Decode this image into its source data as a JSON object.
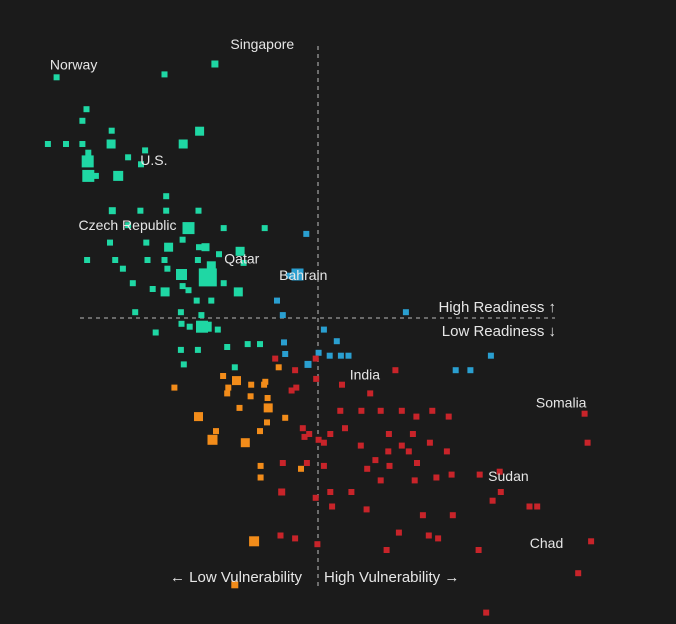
{
  "chart_data": {
    "type": "scatter",
    "title": "",
    "xlim": [
      0,
      1
    ],
    "ylim": [
      0,
      1
    ],
    "grid": false,
    "x_divider": 0.5,
    "y_divider": 0.5,
    "quadrant_labels": {
      "left": "← Low Vulnerability",
      "right": "High Vulnerability →",
      "top": "High Readiness ↑",
      "bottom": "Low Readiness ↓"
    },
    "colors": {
      "background": "#1b1b1b",
      "green": "#1fd7a4",
      "blue": "#2a9fd0",
      "orange": "#f28c1a",
      "red": "#c8242a",
      "divider": "#9a9a9a"
    },
    "labels": [
      {
        "text": "Singapore",
        "x": 0.405,
        "y": 0.97
      },
      {
        "text": "Norway",
        "x": 0.083,
        "y": 0.935
      },
      {
        "text": "U.S.",
        "x": 0.22,
        "y": 0.77
      },
      {
        "text": "Czech Republic",
        "x": 0.175,
        "y": 0.658
      },
      {
        "text": "Qatar",
        "x": 0.37,
        "y": 0.6
      },
      {
        "text": "Bahrain",
        "x": 0.475,
        "y": 0.572
      },
      {
        "text": "India",
        "x": 0.58,
        "y": 0.4
      },
      {
        "text": "Somalia",
        "x": 0.915,
        "y": 0.352
      },
      {
        "text": "Sudan",
        "x": 0.825,
        "y": 0.225
      },
      {
        "text": "Chad",
        "x": 0.89,
        "y": 0.11
      }
    ],
    "series": [
      {
        "color": "green",
        "points": [
          [
            0.054,
            0.915,
            6
          ],
          [
            0.238,
            0.92,
            6
          ],
          [
            0.324,
            0.938,
            7
          ],
          [
            0.105,
            0.86,
            6
          ],
          [
            0.098,
            0.84,
            6
          ],
          [
            0.298,
            0.822,
            9
          ],
          [
            0.148,
            0.823,
            6
          ],
          [
            0.147,
            0.8,
            9
          ],
          [
            0.039,
            0.8,
            6
          ],
          [
            0.07,
            0.8,
            6
          ],
          [
            0.098,
            0.8,
            6
          ],
          [
            0.148,
            0.8,
            6
          ],
          [
            0.176,
            0.777,
            6
          ],
          [
            0.27,
            0.8,
            9
          ],
          [
            0.205,
            0.789,
            6
          ],
          [
            0.108,
            0.785,
            6
          ],
          [
            0.107,
            0.77,
            12
          ],
          [
            0.198,
            0.765,
            6
          ],
          [
            0.121,
            0.745,
            6
          ],
          [
            0.108,
            0.745,
            12
          ],
          [
            0.159,
            0.745,
            10
          ],
          [
            0.241,
            0.71,
            6
          ],
          [
            0.149,
            0.685,
            7
          ],
          [
            0.197,
            0.685,
            6
          ],
          [
            0.241,
            0.685,
            6
          ],
          [
            0.296,
            0.685,
            6
          ],
          [
            0.279,
            0.655,
            12
          ],
          [
            0.176,
            0.66,
            6
          ],
          [
            0.269,
            0.635,
            6
          ],
          [
            0.339,
            0.655,
            6
          ],
          [
            0.409,
            0.655,
            6
          ],
          [
            0.145,
            0.63,
            6
          ],
          [
            0.207,
            0.63,
            6
          ],
          [
            0.245,
            0.622,
            9
          ],
          [
            0.297,
            0.622,
            6
          ],
          [
            0.308,
            0.622,
            8
          ],
          [
            0.331,
            0.61,
            6
          ],
          [
            0.367,
            0.615,
            9
          ],
          [
            0.373,
            0.595,
            6
          ],
          [
            0.106,
            0.6,
            6
          ],
          [
            0.154,
            0.6,
            6
          ],
          [
            0.209,
            0.6,
            6
          ],
          [
            0.238,
            0.6,
            6
          ],
          [
            0.295,
            0.6,
            6
          ],
          [
            0.318,
            0.59,
            9
          ],
          [
            0.312,
            0.57,
            18
          ],
          [
            0.267,
            0.575,
            11
          ],
          [
            0.243,
            0.585,
            6
          ],
          [
            0.269,
            0.555,
            6
          ],
          [
            0.167,
            0.585,
            6
          ],
          [
            0.184,
            0.56,
            6
          ],
          [
            0.279,
            0.548,
            6
          ],
          [
            0.339,
            0.56,
            6
          ],
          [
            0.364,
            0.545,
            9
          ],
          [
            0.218,
            0.55,
            6
          ],
          [
            0.239,
            0.545,
            9
          ],
          [
            0.293,
            0.53,
            6
          ],
          [
            0.318,
            0.53,
            6
          ],
          [
            0.188,
            0.51,
            6
          ],
          [
            0.266,
            0.51,
            6
          ],
          [
            0.301,
            0.505,
            6
          ],
          [
            0.267,
            0.49,
            6
          ],
          [
            0.281,
            0.485,
            6
          ],
          [
            0.302,
            0.485,
            12
          ],
          [
            0.31,
            0.485,
            10
          ],
          [
            0.329,
            0.48,
            6
          ],
          [
            0.223,
            0.475,
            6
          ],
          [
            0.345,
            0.45,
            6
          ],
          [
            0.266,
            0.445,
            6
          ],
          [
            0.295,
            0.445,
            6
          ],
          [
            0.38,
            0.455,
            6
          ],
          [
            0.401,
            0.455,
            6
          ],
          [
            0.271,
            0.42,
            6
          ],
          [
            0.358,
            0.415,
            6
          ]
        ]
      },
      {
        "color": "blue",
        "points": [
          [
            0.48,
            0.645,
            6
          ],
          [
            0.451,
            0.573,
            6
          ],
          [
            0.465,
            0.575,
            12
          ],
          [
            0.43,
            0.53,
            6
          ],
          [
            0.44,
            0.505,
            6
          ],
          [
            0.51,
            0.48,
            6
          ],
          [
            0.532,
            0.46,
            6
          ],
          [
            0.442,
            0.458,
            6
          ],
          [
            0.444,
            0.438,
            6
          ],
          [
            0.501,
            0.44,
            6
          ],
          [
            0.52,
            0.435,
            6
          ],
          [
            0.539,
            0.435,
            6
          ],
          [
            0.552,
            0.435,
            6
          ],
          [
            0.483,
            0.42,
            7
          ],
          [
            0.65,
            0.51,
            6
          ],
          [
            0.795,
            0.435,
            6
          ],
          [
            0.735,
            0.41,
            6
          ],
          [
            0.76,
            0.41,
            6
          ]
        ]
      },
      {
        "color": "orange",
        "points": [
          [
            0.255,
            0.38,
            6
          ],
          [
            0.347,
            0.38,
            6
          ],
          [
            0.361,
            0.392,
            9
          ],
          [
            0.386,
            0.385,
            6
          ],
          [
            0.408,
            0.385,
            6
          ],
          [
            0.338,
            0.4,
            6
          ],
          [
            0.41,
            0.39,
            6
          ],
          [
            0.345,
            0.37,
            6
          ],
          [
            0.385,
            0.365,
            6
          ],
          [
            0.433,
            0.415,
            6
          ],
          [
            0.414,
            0.362,
            6
          ],
          [
            0.415,
            0.345,
            9
          ],
          [
            0.413,
            0.32,
            6
          ],
          [
            0.366,
            0.345,
            6
          ],
          [
            0.296,
            0.33,
            9
          ],
          [
            0.444,
            0.328,
            6
          ],
          [
            0.326,
            0.305,
            6
          ],
          [
            0.401,
            0.305,
            6
          ],
          [
            0.32,
            0.29,
            10
          ],
          [
            0.376,
            0.285,
            9
          ],
          [
            0.402,
            0.225,
            6
          ],
          [
            0.402,
            0.245,
            6
          ],
          [
            0.471,
            0.24,
            6
          ],
          [
            0.391,
            0.115,
            10
          ],
          [
            0.358,
            0.04,
            7
          ]
        ]
      },
      {
        "color": "red",
        "points": [
          [
            0.427,
            0.43,
            6
          ],
          [
            0.461,
            0.41,
            6
          ],
          [
            0.496,
            0.43,
            6
          ],
          [
            0.632,
            0.41,
            6
          ],
          [
            0.497,
            0.395,
            6
          ],
          [
            0.463,
            0.38,
            6
          ],
          [
            0.541,
            0.385,
            6
          ],
          [
            0.589,
            0.37,
            6
          ],
          [
            0.607,
            0.34,
            6
          ],
          [
            0.455,
            0.375,
            6
          ],
          [
            0.485,
            0.3,
            6
          ],
          [
            0.474,
            0.31,
            6
          ],
          [
            0.477,
            0.295,
            6
          ],
          [
            0.501,
            0.29,
            6
          ],
          [
            0.51,
            0.285,
            6
          ],
          [
            0.521,
            0.3,
            6
          ],
          [
            0.538,
            0.34,
            6
          ],
          [
            0.546,
            0.31,
            6
          ],
          [
            0.574,
            0.34,
            6
          ],
          [
            0.643,
            0.34,
            6
          ],
          [
            0.695,
            0.34,
            6
          ],
          [
            0.723,
            0.33,
            6
          ],
          [
            0.668,
            0.33,
            6
          ],
          [
            0.955,
            0.335,
            6
          ],
          [
            0.621,
            0.3,
            6
          ],
          [
            0.662,
            0.3,
            6
          ],
          [
            0.643,
            0.28,
            6
          ],
          [
            0.573,
            0.28,
            6
          ],
          [
            0.62,
            0.27,
            6
          ],
          [
            0.655,
            0.27,
            6
          ],
          [
            0.72,
            0.27,
            6
          ],
          [
            0.691,
            0.285,
            6
          ],
          [
            0.584,
            0.24,
            6
          ],
          [
            0.598,
            0.255,
            6
          ],
          [
            0.622,
            0.245,
            6
          ],
          [
            0.669,
            0.25,
            6
          ],
          [
            0.728,
            0.23,
            6
          ],
          [
            0.776,
            0.23,
            6
          ],
          [
            0.481,
            0.25,
            6
          ],
          [
            0.44,
            0.25,
            6
          ],
          [
            0.51,
            0.245,
            6
          ],
          [
            0.607,
            0.22,
            6
          ],
          [
            0.665,
            0.22,
            6
          ],
          [
            0.702,
            0.225,
            6
          ],
          [
            0.81,
            0.235,
            6
          ],
          [
            0.861,
            0.175,
            6
          ],
          [
            0.812,
            0.2,
            6
          ],
          [
            0.557,
            0.2,
            6
          ],
          [
            0.521,
            0.2,
            6
          ],
          [
            0.496,
            0.19,
            6
          ],
          [
            0.438,
            0.2,
            7
          ],
          [
            0.436,
            0.125,
            6
          ],
          [
            0.461,
            0.12,
            6
          ],
          [
            0.499,
            0.11,
            6
          ],
          [
            0.524,
            0.175,
            6
          ],
          [
            0.583,
            0.17,
            6
          ],
          [
            0.638,
            0.13,
            6
          ],
          [
            0.617,
            0.1,
            6
          ],
          [
            0.679,
            0.16,
            6
          ],
          [
            0.689,
            0.125,
            6
          ],
          [
            0.73,
            0.16,
            6
          ],
          [
            0.705,
            0.12,
            6
          ],
          [
            0.798,
            0.185,
            6
          ],
          [
            0.874,
            0.175,
            6
          ],
          [
            0.774,
            0.1,
            6
          ],
          [
            0.96,
            0.285,
            6
          ],
          [
            0.944,
            0.06,
            6
          ],
          [
            0.966,
            0.115,
            6
          ],
          [
            0.787,
            -0.008,
            6
          ]
        ]
      }
    ]
  }
}
